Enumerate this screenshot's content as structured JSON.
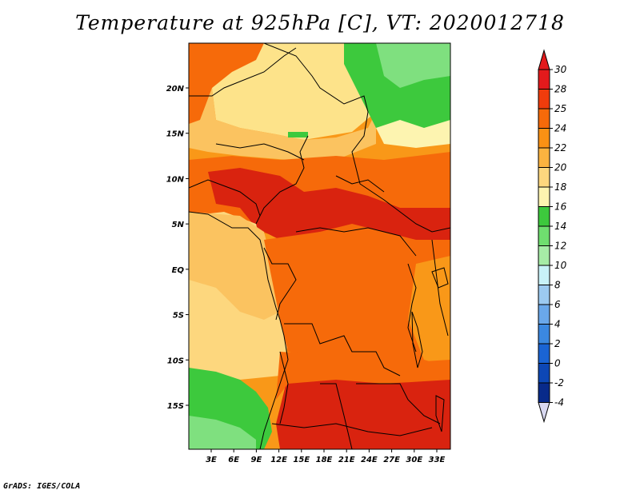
{
  "title": "Temperature at 925hPa [C], VT: 2020012718",
  "footer": "GrADS: IGES/COLA",
  "map": {
    "region": "Central Africa",
    "lat_labels": [
      "20N",
      "15N",
      "10N",
      "5N",
      "EQ",
      "5S",
      "10S",
      "15S"
    ],
    "lat_values": [
      20,
      15,
      10,
      5,
      0,
      -5,
      -10,
      -15
    ],
    "lon_labels": [
      "3E",
      "6E",
      "9E",
      "12E",
      "15E",
      "18E",
      "21E",
      "24E",
      "27E",
      "30E",
      "33E"
    ],
    "lon_values": [
      3,
      6,
      9,
      12,
      15,
      18,
      21,
      24,
      27,
      30,
      33
    ]
  },
  "colorbar": {
    "labels": [
      "30",
      "28",
      "25",
      "24",
      "22",
      "20",
      "18",
      "16",
      "14",
      "12",
      "10",
      "8",
      "6",
      "4",
      "2",
      "0",
      "-2",
      "-4"
    ],
    "colors": [
      "#e31a1c",
      "#f03c0c",
      "#f66a0a",
      "#fa9114",
      "#fbb340",
      "#fdd77e",
      "#fdf4b0",
      "#3dc93d",
      "#6fde6f",
      "#a6eca6",
      "#c8f2f8",
      "#9ccaf0",
      "#6aa8ea",
      "#3b88e0",
      "#1a64d4",
      "#0d47b5",
      "#082a8a",
      "#051858"
    ],
    "top_arrow_color": "#e31a1c",
    "bottom_arrow_color": "#d8d8f0"
  },
  "colors": {
    "hot": "#d9230f",
    "warm_orange": "#f56a0a",
    "orange": "#f99818",
    "light_orange": "#fbc360",
    "pale_yellow": "#fde38a",
    "green": "#3dc93d",
    "light_green": "#7fe07f"
  }
}
